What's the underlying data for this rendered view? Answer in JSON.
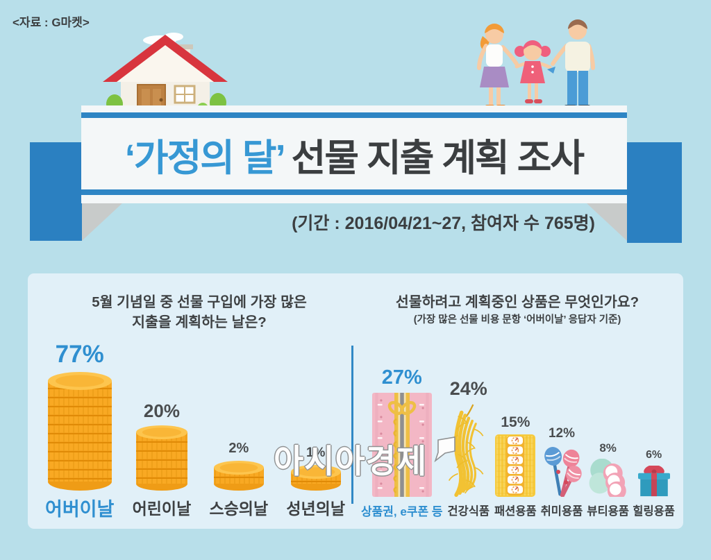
{
  "source": "<자료 : G마켓>",
  "banner": {
    "title_highlight": "‘가정의 달’",
    "title_rest": " 선물 지출 계획 조사",
    "subtitle": "(기간 : 2016/04/21~27, 참여자 수 765명)"
  },
  "watermark": {
    "text": "아시아경제",
    "logo": "speech-bubble-logo"
  },
  "colors": {
    "page_bg": "#b8dfea",
    "panel_bg": "#e1f0f8",
    "accent_blue": "#2e85c4",
    "highlight_blue": "#2f8fd0",
    "text_dark": "#3d4042",
    "coin_gold": "#f8a823",
    "gift_pink": "#f3b7c5",
    "ginseng_yellow": "#f2c233"
  },
  "chart_data": [
    {
      "type": "bar",
      "bar_style": "coin-stack",
      "title": "5월 기념일 중 선물 구입에 가장 많은 지출을 계획하는 날은?",
      "title_lines": [
        "5월 기념일 중 선물 구입에 가장 많은",
        "지출을 계획하는 날은?"
      ],
      "categories": [
        "어버이날",
        "어린이날",
        "스승의날",
        "성년의날"
      ],
      "values": [
        77,
        20,
        2,
        1
      ],
      "unit": "%",
      "highlight_index": 0,
      "legend": "none",
      "grid": false
    },
    {
      "type": "bar",
      "bar_style": "product-icons",
      "title": "선물하려고 계획중인 상품은 무엇인가요?",
      "subtitle": "(가장 많은 선물 비용 문항 ‘어버이날’ 응답자 기준)",
      "categories": [
        "상품권, e쿠폰 등",
        "건강식품",
        "패션용품",
        "취미용품",
        "뷰티용품",
        "힐링용품"
      ],
      "values": [
        27,
        24,
        15,
        12,
        8,
        6
      ],
      "unit": "%",
      "icons": [
        "wrapped-gift-voucher-icon",
        "ginseng-icon",
        "fashion-item-icon",
        "hobby-rackets-icon",
        "beauty-compacts-icon",
        "gift-box-icon"
      ],
      "highlight_index": 0,
      "legend": "none",
      "grid": false
    }
  ]
}
